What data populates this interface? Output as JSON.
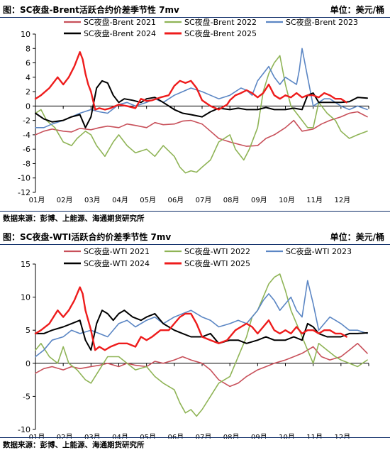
{
  "chart_data": [
    {
      "type": "line",
      "title": "图：SC夜盘-Brent活跃合约价差季节性 7mv",
      "unit": "单位：美元/桶",
      "source": "数据来源：彭博、上能源、海通期货研究所",
      "ylim": [
        -12,
        10
      ],
      "yticks": [
        -12,
        -10,
        -8,
        -6,
        -4,
        -2,
        0,
        2,
        4,
        6,
        8,
        10
      ],
      "x_ticks": [
        "01月",
        "02月",
        "03月",
        "04月",
        "05月",
        "06月",
        "07月",
        "08月",
        "09月",
        "10月",
        "11月",
        "12月"
      ],
      "legend": [
        "SC夜盘-Brent 2021",
        "SC夜盘-Brent 2022",
        "SC夜盘-Brent 2023",
        "SC夜盘-Brent 2024",
        "SC夜盘-Brent 2025"
      ],
      "series": [
        {
          "name": "SC夜盘-Brent 2021",
          "color": "#c8505a",
          "width": 1.6,
          "x": [
            0,
            0.3,
            0.6,
            1,
            1.3,
            1.6,
            2,
            2.3,
            2.6,
            3,
            3.3,
            3.6,
            4,
            4.3,
            4.6,
            5,
            5.3,
            5.6,
            6,
            6.3,
            6.6,
            7,
            7.3,
            7.6,
            8,
            8.3,
            8.6,
            9,
            9.3,
            9.6,
            10,
            10.3,
            10.6,
            11,
            11.3,
            11.6,
            11.95
          ],
          "y": [
            -4,
            -3.5,
            -3.2,
            -3.5,
            -3.6,
            -3.1,
            -3.3,
            -3,
            -2.8,
            -3,
            -2.5,
            -2.7,
            -3,
            -2.3,
            -2.6,
            -2.5,
            -2.1,
            -2,
            -2.5,
            -3.5,
            -4.5,
            -5,
            -5.3,
            -5.6,
            -5.5,
            -4.5,
            -4,
            -3,
            -2,
            -3.5,
            -3.2,
            -2.5,
            -2,
            -1.5,
            -1,
            -0.8,
            -1.5
          ]
        },
        {
          "name": "SC夜盘-Brent 2022",
          "color": "#8fb456",
          "width": 1.6,
          "x": [
            0,
            0.2,
            0.4,
            0.7,
            1,
            1.3,
            1.5,
            1.8,
            2,
            2.2,
            2.5,
            2.8,
            3,
            3.3,
            3.6,
            4,
            4.3,
            4.6,
            5,
            5.2,
            5.4,
            5.6,
            5.8,
            6,
            6.3,
            6.6,
            7,
            7.2,
            7.5,
            7.7,
            8,
            8.2,
            8.4,
            8.6,
            8.8,
            9,
            9.2,
            9.4,
            9.6,
            9.8,
            10,
            10.2,
            10.5,
            10.8,
            11,
            11.3,
            11.6,
            11.95
          ],
          "y": [
            -1,
            -0.5,
            -2,
            -3,
            -5,
            -5.5,
            -4.5,
            -3.5,
            -4,
            -5.5,
            -7,
            -5,
            -4,
            -5.5,
            -6.5,
            -6,
            -7,
            -5.5,
            -7,
            -8.5,
            -9.3,
            -9,
            -9.2,
            -8.5,
            -7.5,
            -5,
            -4,
            -6,
            -7.5,
            -6,
            -3,
            2,
            4.5,
            6,
            7,
            3,
            0,
            -1,
            -2,
            -3,
            -3,
            0.5,
            -1,
            -2,
            -3.5,
            -4.5,
            -4,
            -3.5
          ]
        },
        {
          "name": "SC夜盘-Brent 2023",
          "color": "#5b86c4",
          "width": 1.6,
          "x": [
            0,
            0.3,
            0.6,
            1,
            1.3,
            1.6,
            2,
            2.3,
            2.6,
            3,
            3.3,
            3.6,
            4,
            4.3,
            4.6,
            5,
            5.3,
            5.6,
            6,
            6.3,
            6.6,
            7,
            7.2,
            7.4,
            7.6,
            7.8,
            8,
            8.2,
            8.4,
            8.6,
            8.8,
            9,
            9.2,
            9.4,
            9.5,
            9.6,
            9.7,
            9.8,
            9.9,
            10,
            10.2,
            10.4,
            10.6,
            10.8,
            11,
            11.3,
            11.6,
            11.95
          ],
          "y": [
            -3,
            -3,
            -2.5,
            -2,
            -1.5,
            -1,
            -0.5,
            -0.8,
            -1,
            0.2,
            0.5,
            0,
            0.5,
            1,
            0.5,
            1.5,
            2,
            2.5,
            2,
            1.5,
            1,
            1.5,
            2,
            2.5,
            2.2,
            1.5,
            3.5,
            4.5,
            5.5,
            4,
            3,
            4,
            3.5,
            3,
            5,
            8,
            6,
            4,
            2,
            0,
            0.5,
            1,
            1,
            0.5,
            0,
            -0.5,
            0,
            -0.5
          ]
        },
        {
          "name": "SC夜盘-Brent 2024",
          "color": "#000000",
          "width": 2.0,
          "x": [
            0,
            0.3,
            0.6,
            1,
            1.3,
            1.6,
            1.8,
            2,
            2.2,
            2.4,
            2.6,
            2.8,
            3,
            3.2,
            3.5,
            3.8,
            4,
            4.3,
            4.6,
            5,
            5.3,
            5.6,
            6,
            6.3,
            6.6,
            7,
            7.3,
            7.6,
            8,
            8.3,
            8.6,
            9,
            9.3,
            9.6,
            9.8,
            10,
            10.2,
            10.5,
            10.8,
            11,
            11.3,
            11.6,
            11.95
          ],
          "y": [
            -1,
            -1.8,
            -2.2,
            -2,
            -1.5,
            -1.2,
            -3,
            -1.5,
            2.5,
            3.5,
            3.2,
            1.5,
            0.5,
            1,
            0.8,
            0.5,
            1,
            1.2,
            0.5,
            -0.5,
            -1,
            -1.2,
            -1.5,
            -0.8,
            -0.3,
            -0.5,
            -0.3,
            -0.5,
            -0.5,
            -0.2,
            -0.5,
            -0.5,
            -0.3,
            -0.5,
            1.5,
            1.8,
            0.5,
            0.5,
            0.5,
            0.5,
            0.6,
            1.2,
            1.1
          ]
        },
        {
          "name": "SC夜盘-Brent 2025",
          "color": "#ee1c1c",
          "width": 2.4,
          "x": [
            0,
            0.2,
            0.5,
            0.8,
            1,
            1.2,
            1.4,
            1.6,
            1.7,
            1.8,
            1.9,
            2,
            2.15,
            2.3,
            2.5,
            2.7,
            3,
            3.3,
            3.6,
            3.8,
            4,
            4.2,
            4.5,
            4.8,
            5,
            5.2,
            5.4,
            5.6,
            5.8,
            6,
            6.3,
            6.6,
            6.9,
            7,
            7.2,
            7.4,
            7.6,
            7.8,
            8,
            8.2,
            8.4,
            8.6,
            8.8,
            9,
            9.2,
            9.4,
            9.6,
            9.8,
            10,
            10.2,
            10.4,
            10.6,
            10.8,
            11,
            11.2
          ],
          "y": [
            1,
            1.5,
            2.5,
            4,
            3,
            4,
            5.5,
            7.5,
            6.5,
            4.5,
            3,
            2,
            -0.5,
            -0.3,
            -0.5,
            -0.3,
            0.2,
            0,
            -0.3,
            1,
            0.7,
            0.8,
            1.2,
            1.5,
            2.8,
            3.5,
            3.2,
            3.5,
            2.5,
            0.8,
            0,
            -0.5,
            0.2,
            0.8,
            1.5,
            1.8,
            2.2,
            1.8,
            1.2,
            1.8,
            3,
            1.5,
            1,
            1.5,
            1.2,
            1.8,
            1.2,
            1.5,
            1.5,
            1.2,
            1.8,
            1.5,
            1,
            1,
            0.5
          ]
        }
      ]
    },
    {
      "type": "line",
      "title": "图：SC夜盘-WTI活跃合约价差季节性 7mv",
      "unit": "单位：美元/桶",
      "source": "数据来源：彭博、上能源、海通期货研究所",
      "ylim": [
        -10,
        15
      ],
      "yticks": [
        -10,
        -5,
        0,
        5,
        10,
        15
      ],
      "x_ticks": [
        "01月",
        "02月",
        "03月",
        "04月",
        "05月",
        "06月",
        "07月",
        "08月",
        "09月",
        "10月",
        "11月",
        "12月"
      ],
      "legend": [
        "SC夜盘-WTI 2021",
        "SC夜盘-WTI 2022",
        "SC夜盘-WTI 2023",
        "SC夜盘-WTI 2024",
        "SC夜盘-WTI 2025"
      ],
      "series": [
        {
          "name": "SC夜盘-WTI 2021",
          "color": "#c8505a",
          "width": 1.6,
          "x": [
            0,
            0.3,
            0.6,
            1,
            1.3,
            1.6,
            2,
            2.3,
            2.6,
            3,
            3.3,
            3.6,
            4,
            4.3,
            4.6,
            5,
            5.3,
            5.6,
            6,
            6.3,
            6.6,
            7,
            7.3,
            7.6,
            8,
            8.3,
            8.6,
            9,
            9.3,
            9.6,
            10,
            10.3,
            10.6,
            11,
            11.3,
            11.6,
            11.95
          ],
          "y": [
            -1.5,
            -0.8,
            -0.5,
            -1,
            -0.5,
            -0.8,
            -0.5,
            -0.3,
            0,
            -0.5,
            0,
            -0.3,
            -0.5,
            0.3,
            0,
            0.5,
            1,
            0.5,
            0,
            -1,
            -2.5,
            -3.5,
            -3,
            -2,
            -1,
            -0.5,
            0,
            0.5,
            1,
            1.5,
            2.5,
            1,
            0.5,
            1,
            2,
            3,
            1.5
          ]
        },
        {
          "name": "SC夜盘-WTI 2022",
          "color": "#8fb456",
          "width": 1.6,
          "x": [
            0,
            0.2,
            0.5,
            0.8,
            1,
            1.2,
            1.5,
            1.8,
            2,
            2.3,
            2.6,
            3,
            3.3,
            3.6,
            4,
            4.3,
            4.6,
            5,
            5.2,
            5.4,
            5.6,
            5.8,
            6,
            6.3,
            6.6,
            7,
            7.2,
            7.4,
            7.6,
            7.8,
            8,
            8.2,
            8.4,
            8.6,
            8.8,
            9,
            9.2,
            9.4,
            9.6,
            9.8,
            10,
            10.2,
            10.5,
            10.8,
            11,
            11.3,
            11.6,
            11.95
          ],
          "y": [
            2,
            3,
            1,
            0,
            2.5,
            0,
            -1,
            -2.5,
            -3,
            -1,
            1,
            1,
            0,
            -1,
            -0.5,
            -2,
            -3,
            -4,
            -6,
            -7.5,
            -7,
            -8,
            -7,
            -5,
            -3,
            -2,
            0,
            2,
            4,
            7,
            8,
            10,
            12,
            13,
            13.5,
            11,
            8,
            6,
            4,
            2,
            0,
            3,
            2,
            1,
            0.5,
            0,
            -0.5,
            0.5
          ]
        },
        {
          "name": "SC夜盘-WTI 2023",
          "color": "#5b86c4",
          "width": 1.6,
          "x": [
            0,
            0.3,
            0.6,
            1,
            1.3,
            1.6,
            2,
            2.3,
            2.6,
            3,
            3.3,
            3.6,
            4,
            4.3,
            4.6,
            5,
            5.3,
            5.6,
            6,
            6.3,
            6.6,
            7,
            7.3,
            7.6,
            8,
            8.2,
            8.4,
            8.6,
            8.8,
            9,
            9.2,
            9.4,
            9.6,
            9.8,
            10,
            10.2,
            10.4,
            10.6,
            10.8,
            11,
            11.3,
            11.6,
            11.95
          ],
          "y": [
            1,
            2,
            3.5,
            4,
            5,
            4.5,
            5,
            4.5,
            4,
            6,
            6.5,
            5.5,
            6.5,
            7,
            6,
            7,
            7.5,
            8,
            7,
            6.5,
            5.5,
            6,
            6.5,
            6,
            8,
            9.5,
            10.5,
            9.5,
            8,
            9,
            10,
            8,
            7,
            12.5,
            9,
            5,
            6,
            7,
            6.5,
            6,
            5,
            5,
            4.5
          ]
        },
        {
          "name": "SC夜盘-WTI 2024",
          "color": "#000000",
          "width": 2.0,
          "x": [
            0,
            0.3,
            0.6,
            1,
            1.3,
            1.6,
            1.8,
            2,
            2.2,
            2.4,
            2.6,
            2.8,
            3,
            3.2,
            3.5,
            3.8,
            4,
            4.3,
            4.6,
            5,
            5.3,
            5.6,
            6,
            6.3,
            6.6,
            7,
            7.3,
            7.6,
            8,
            8.3,
            8.6,
            9,
            9.3,
            9.6,
            9.8,
            10,
            10.2,
            10.5,
            10.8,
            11,
            11.3,
            11.6,
            11.95
          ],
          "y": [
            4.5,
            4.5,
            5,
            5.5,
            6,
            6.5,
            3.5,
            2,
            6,
            8,
            7.5,
            6.5,
            7.5,
            8,
            7,
            6.5,
            7,
            7.5,
            6,
            5,
            4.5,
            4,
            4,
            4.5,
            3,
            3.5,
            3.5,
            3,
            3.5,
            4,
            3.5,
            3.5,
            4,
            3.5,
            6,
            5.5,
            4.5,
            4,
            4,
            4,
            4.5,
            4.5,
            4.6
          ]
        },
        {
          "name": "SC夜盘-WTI 2025",
          "color": "#ee1c1c",
          "width": 2.4,
          "x": [
            0,
            0.2,
            0.5,
            0.8,
            1,
            1.2,
            1.4,
            1.6,
            1.7,
            1.8,
            1.9,
            2,
            2.15,
            2.3,
            2.5,
            2.7,
            3,
            3.3,
            3.6,
            3.8,
            4,
            4.2,
            4.5,
            4.8,
            5,
            5.2,
            5.4,
            5.6,
            5.8,
            6,
            6.3,
            6.6,
            6.9,
            7,
            7.2,
            7.4,
            7.6,
            7.8,
            8,
            8.2,
            8.4,
            8.6,
            8.8,
            9,
            9.2,
            9.4,
            9.6,
            9.8,
            10,
            10.2,
            10.4,
            10.6,
            10.8,
            11,
            11.2
          ],
          "y": [
            4.5,
            5,
            6,
            8,
            7,
            8,
            9.5,
            11.5,
            10.5,
            8,
            6.5,
            5,
            2,
            2.5,
            2,
            2.5,
            3,
            3,
            2.5,
            4,
            3.5,
            4,
            5,
            5,
            6,
            7,
            7.5,
            7.5,
            6,
            4,
            3.5,
            3,
            3.5,
            4,
            5,
            5.5,
            6,
            5.5,
            4.5,
            5.5,
            6.5,
            5,
            4.5,
            5,
            4.5,
            5.5,
            4.5,
            5,
            5,
            4.5,
            5,
            5,
            4.5,
            4.5,
            4
          ]
        }
      ]
    }
  ]
}
